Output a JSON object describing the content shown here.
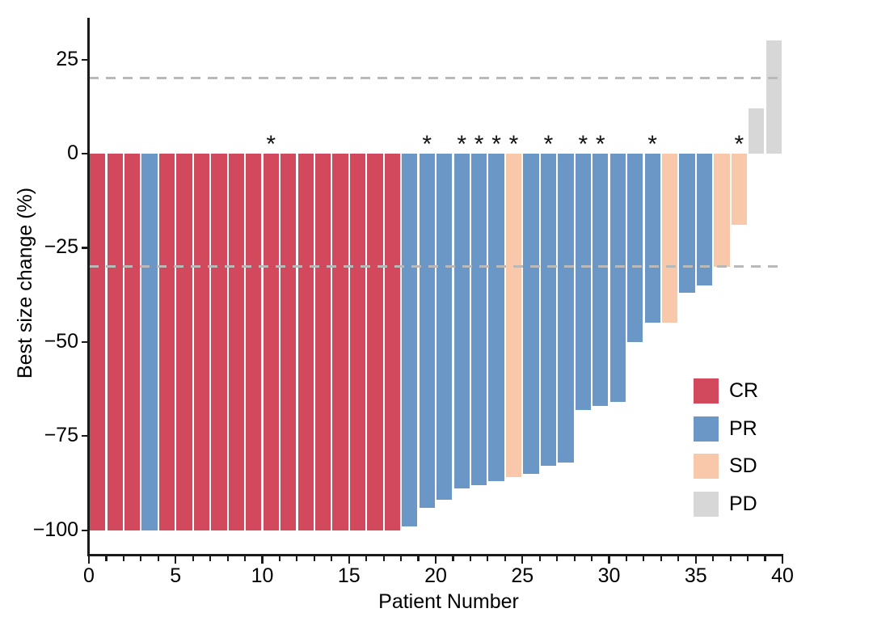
{
  "figure": {
    "background": "#ffffff"
  },
  "chart_data": {
    "type": "bar",
    "subtype": "waterfall",
    "title": "",
    "xlabel": "Patient Number",
    "ylabel": "Best size change (%)",
    "xlim": [
      0,
      40
    ],
    "ylim": [
      -106,
      38
    ],
    "x_major_ticks": [
      0,
      5,
      10,
      15,
      20,
      25,
      30,
      35,
      40
    ],
    "x_minor_tick_every": 1,
    "y_ticks": [
      25,
      0,
      -25,
      -50,
      -75,
      -100
    ],
    "grid": false,
    "reference_lines": {
      "upper": 20,
      "lower": -30,
      "style": "dashed",
      "color": "#b9b9b9"
    },
    "star_marker": "*",
    "response_colors": {
      "CR": "#d2495e",
      "PR": "#6b97c6",
      "SD": "#f9c7a9",
      "PD": "#d7d7d7"
    },
    "legend": {
      "position": "right-inside",
      "entries": [
        {
          "label": "CR",
          "color": "#d2495e"
        },
        {
          "label": "PR",
          "color": "#6b97c6"
        },
        {
          "label": "SD",
          "color": "#f9c7a9"
        },
        {
          "label": "PD",
          "color": "#d7d7d7"
        }
      ]
    },
    "bars": [
      {
        "patient": 1,
        "value": -100,
        "response": "CR",
        "star": false
      },
      {
        "patient": 2,
        "value": -100,
        "response": "CR",
        "star": false
      },
      {
        "patient": 3,
        "value": -100,
        "response": "CR",
        "star": false
      },
      {
        "patient": 4,
        "value": -100,
        "response": "PR",
        "star": false
      },
      {
        "patient": 5,
        "value": -100,
        "response": "CR",
        "star": false
      },
      {
        "patient": 6,
        "value": -100,
        "response": "CR",
        "star": false
      },
      {
        "patient": 7,
        "value": -100,
        "response": "CR",
        "star": false
      },
      {
        "patient": 8,
        "value": -100,
        "response": "CR",
        "star": false
      },
      {
        "patient": 9,
        "value": -100,
        "response": "CR",
        "star": false
      },
      {
        "patient": 10,
        "value": -100,
        "response": "CR",
        "star": false
      },
      {
        "patient": 11,
        "value": -100,
        "response": "CR",
        "star": true
      },
      {
        "patient": 12,
        "value": -100,
        "response": "CR",
        "star": false
      },
      {
        "patient": 13,
        "value": -100,
        "response": "CR",
        "star": false
      },
      {
        "patient": 14,
        "value": -100,
        "response": "CR",
        "star": false
      },
      {
        "patient": 15,
        "value": -100,
        "response": "CR",
        "star": false
      },
      {
        "patient": 16,
        "value": -100,
        "response": "CR",
        "star": false
      },
      {
        "patient": 17,
        "value": -100,
        "response": "CR",
        "star": false
      },
      {
        "patient": 18,
        "value": -100,
        "response": "CR",
        "star": false
      },
      {
        "patient": 19,
        "value": -99,
        "response": "PR",
        "star": false
      },
      {
        "patient": 20,
        "value": -94,
        "response": "PR",
        "star": true
      },
      {
        "patient": 21,
        "value": -92,
        "response": "PR",
        "star": false
      },
      {
        "patient": 22,
        "value": -89,
        "response": "PR",
        "star": true
      },
      {
        "patient": 23,
        "value": -88,
        "response": "PR",
        "star": true
      },
      {
        "patient": 24,
        "value": -87,
        "response": "PR",
        "star": true
      },
      {
        "patient": 25,
        "value": -86,
        "response": "SD",
        "star": true
      },
      {
        "patient": 26,
        "value": -85,
        "response": "PR",
        "star": false
      },
      {
        "patient": 27,
        "value": -83,
        "response": "PR",
        "star": true
      },
      {
        "patient": 28,
        "value": -82,
        "response": "PR",
        "star": false
      },
      {
        "patient": 29,
        "value": -68,
        "response": "PR",
        "star": true
      },
      {
        "patient": 30,
        "value": -67,
        "response": "PR",
        "star": true
      },
      {
        "patient": 31,
        "value": -66,
        "response": "PR",
        "star": false
      },
      {
        "patient": 32,
        "value": -50,
        "response": "PR",
        "star": false
      },
      {
        "patient": 33,
        "value": -45,
        "response": "PR",
        "star": true
      },
      {
        "patient": 34,
        "value": -45,
        "response": "SD",
        "star": false
      },
      {
        "patient": 35,
        "value": -37,
        "response": "PR",
        "star": false
      },
      {
        "patient": 36,
        "value": -35,
        "response": "PR",
        "star": false
      },
      {
        "patient": 37,
        "value": -30,
        "response": "SD",
        "star": false
      },
      {
        "patient": 38,
        "value": -19,
        "response": "SD",
        "star": true
      },
      {
        "patient": 39,
        "value": 12,
        "response": "PD",
        "star": false
      },
      {
        "patient": 40,
        "value": 30,
        "response": "PD",
        "star": false
      }
    ]
  }
}
